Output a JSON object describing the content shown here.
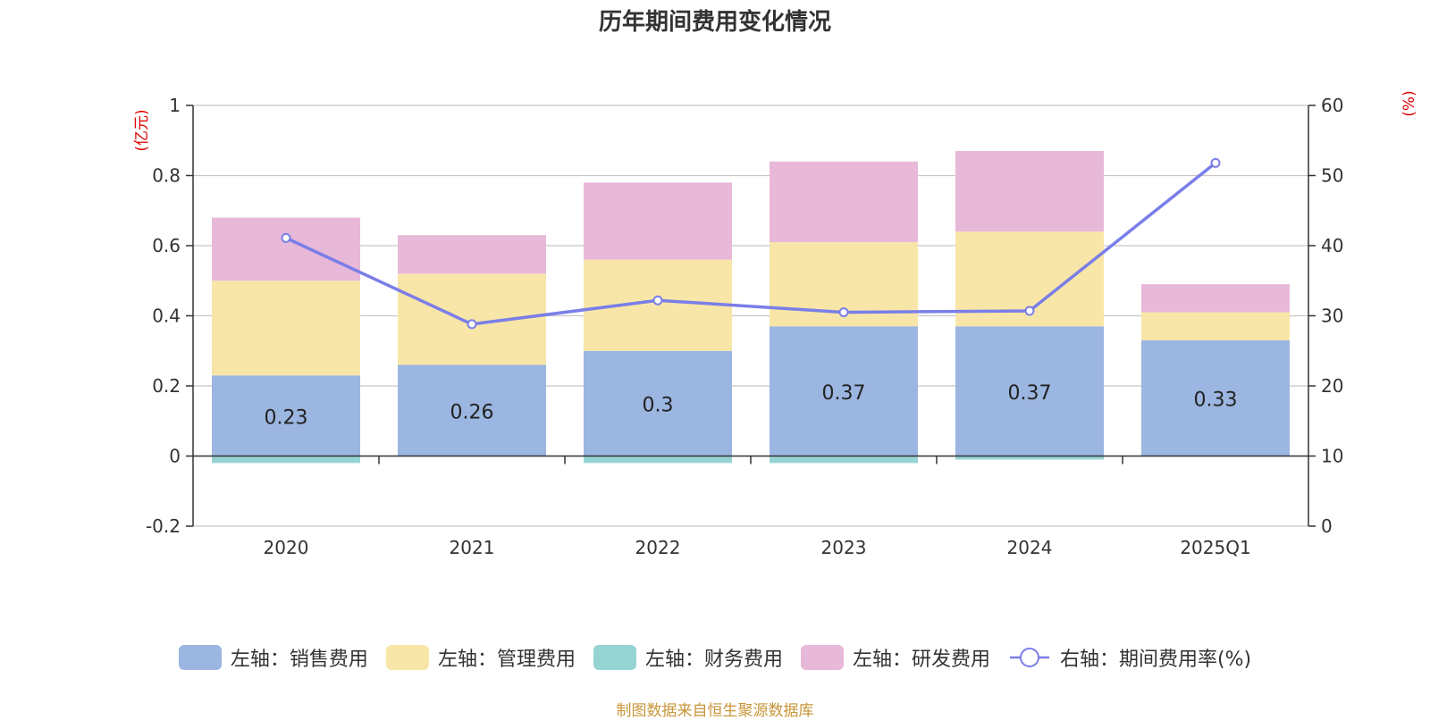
{
  "title": "历年期间费用变化情况",
  "source_note": "制图数据来自恒生聚源数据库",
  "units": {
    "left": "(亿元)",
    "right": "(%)"
  },
  "colors": {
    "sales": "#9bb6e0",
    "admin": "#f8e6a8",
    "finance": "#96d4d4",
    "rd": "#e8b8d9",
    "rate": "#7a7ee8"
  },
  "chart_data": {
    "type": "bar",
    "stacked": true,
    "categories": [
      "2020",
      "2021",
      "2022",
      "2023",
      "2024",
      "2025Q1"
    ],
    "series": [
      {
        "key": "sales",
        "name": "左轴：销售费用",
        "axis": "left",
        "values": [
          0.23,
          0.26,
          0.3,
          0.37,
          0.37,
          0.33
        ]
      },
      {
        "key": "admin",
        "name": "左轴：管理费用",
        "axis": "left",
        "values": [
          0.27,
          0.26,
          0.26,
          0.24,
          0.27,
          0.08
        ]
      },
      {
        "key": "finance",
        "name": "左轴：财务费用",
        "axis": "left",
        "values": [
          -0.02,
          0.0,
          -0.02,
          -0.02,
          -0.01,
          0.0
        ]
      },
      {
        "key": "rd",
        "name": "左轴：研发费用",
        "axis": "left",
        "values": [
          0.18,
          0.11,
          0.22,
          0.23,
          0.23,
          0.08
        ]
      },
      {
        "key": "rate",
        "name": "右轴：期间费用率(%)",
        "axis": "right",
        "type": "line",
        "values": [
          41.1,
          28.8,
          32.2,
          30.5,
          30.7,
          51.8
        ]
      }
    ],
    "data_labels": [
      "0.23",
      "0.26",
      "0.3",
      "0.37",
      "0.37",
      "0.33"
    ],
    "left_axis": {
      "min": -0.2,
      "max": 1,
      "ticks": [
        "-0.2",
        "0",
        "0.2",
        "0.4",
        "0.6",
        "0.8",
        "1"
      ]
    },
    "right_axis": {
      "min": 0,
      "max": 60,
      "ticks": [
        "0",
        "10",
        "20",
        "30",
        "40",
        "50",
        "60"
      ]
    },
    "grid": true,
    "legend_position": "bottom"
  }
}
